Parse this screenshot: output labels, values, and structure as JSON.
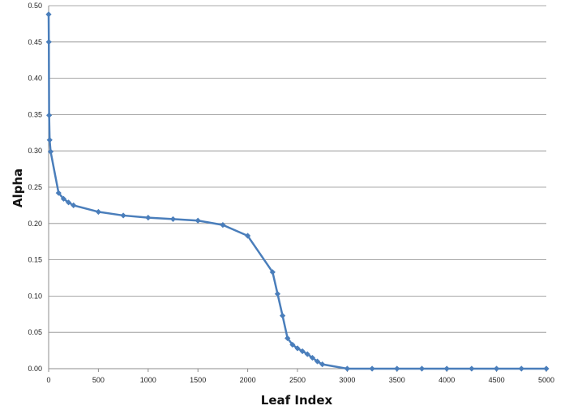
{
  "chart_data": {
    "type": "line",
    "title": "",
    "xlabel": "Leaf Index",
    "ylabel": "Alpha",
    "xlim": [
      0,
      5000
    ],
    "ylim": [
      0,
      0.5
    ],
    "x_ticks": [
      "0",
      "500",
      "1000",
      "1500",
      "2000",
      "2500",
      "3000",
      "3500",
      "4000",
      "4500",
      "5000"
    ],
    "y_ticks": [
      "0.00",
      "0.05",
      "0.10",
      "0.15",
      "0.20",
      "0.25",
      "0.30",
      "0.35",
      "0.40",
      "0.45",
      "0.50"
    ],
    "grid": "horizontal",
    "legend": "none",
    "color": "#4a7ebb",
    "series": [
      {
        "x": [
          0,
          2,
          5,
          10,
          20,
          100,
          150,
          200,
          250,
          500,
          750,
          1000,
          1250,
          1500,
          1750,
          2000,
          2250,
          2300,
          2350,
          2400,
          2450,
          2500,
          2550,
          2600,
          2650,
          2700,
          2750,
          3000,
          3250,
          3500,
          3750,
          4000,
          4250,
          4500,
          4750,
          5000
        ],
        "y": [
          0.488,
          0.45,
          0.349,
          0.315,
          0.299,
          0.242,
          0.234,
          0.229,
          0.225,
          0.216,
          0.211,
          0.208,
          0.206,
          0.204,
          0.198,
          0.183,
          0.133,
          0.103,
          0.073,
          0.042,
          0.033,
          0.028,
          0.024,
          0.02,
          0.015,
          0.01,
          0.006,
          0.0,
          0.0,
          0.0,
          0.0,
          0.0,
          0.0,
          0.0,
          0.0,
          0.0
        ]
      }
    ]
  }
}
